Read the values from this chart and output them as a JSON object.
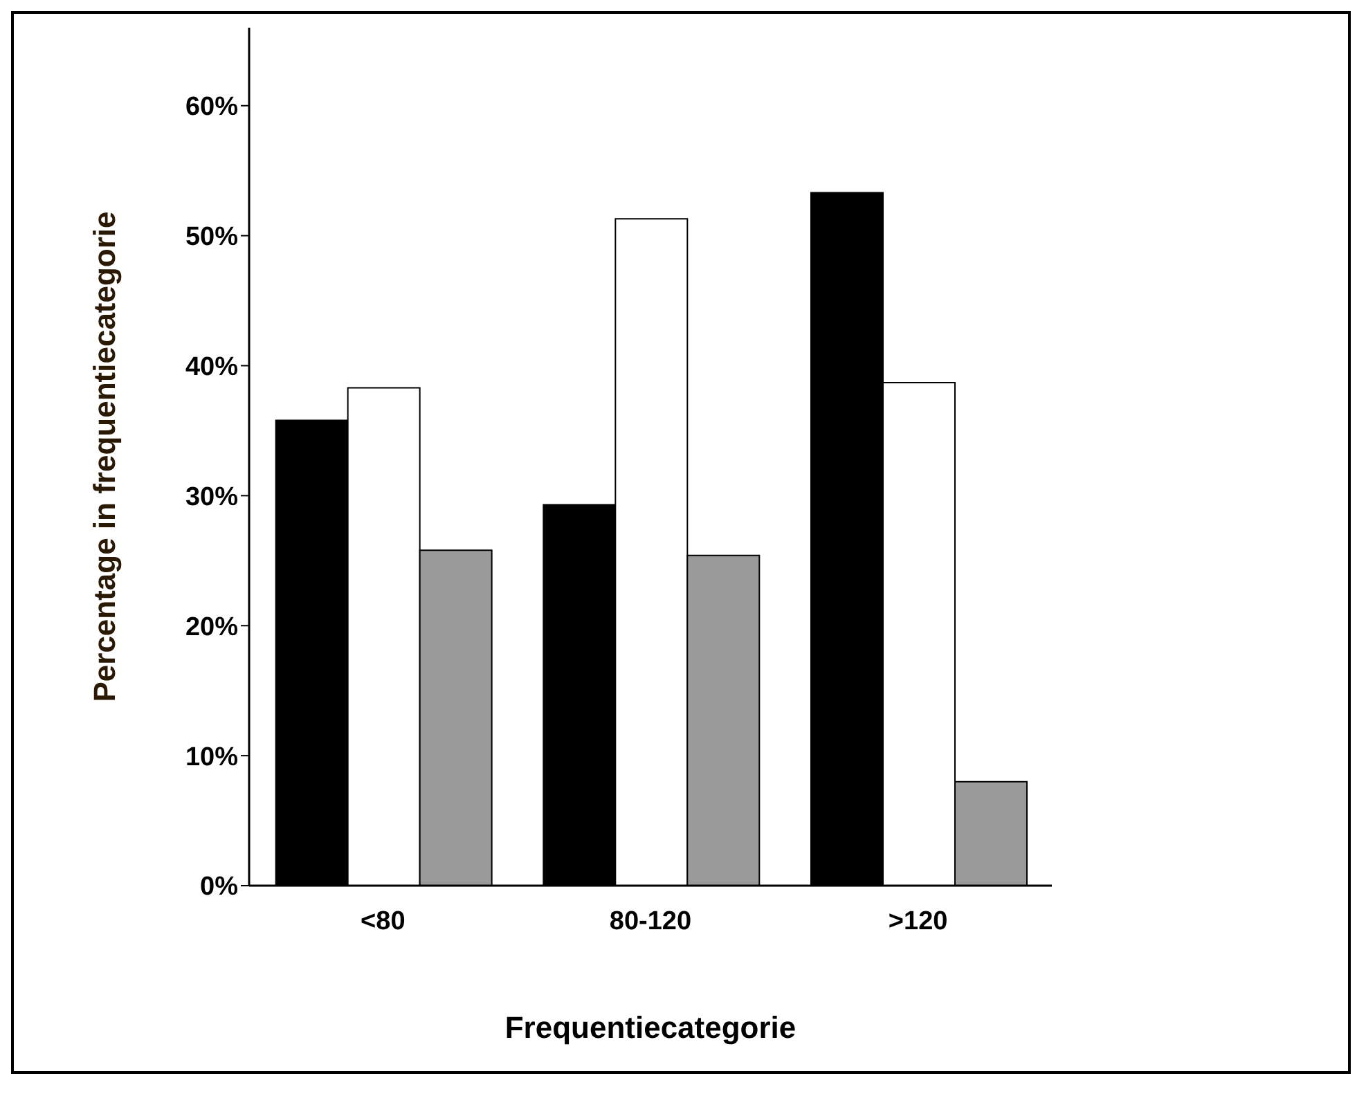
{
  "chart_data": {
    "type": "bar",
    "xlabel": "Frequentiecategorie",
    "ylabel": "Percentage in frequentiecategorie",
    "categories": [
      "<80",
      "80-120",
      ">120"
    ],
    "series": [
      {
        "color": "#000000",
        "values": [
          35.8,
          29.3,
          53.3
        ]
      },
      {
        "color": "#ffffff",
        "values": [
          38.3,
          51.3,
          38.7
        ]
      },
      {
        "color": "#9a9a9a",
        "values": [
          25.8,
          25.4,
          8.0
        ]
      }
    ],
    "ylim": [
      0,
      66
    ],
    "yticks": [
      {
        "value": 0,
        "label": "0%"
      },
      {
        "value": 10,
        "label": "10%"
      },
      {
        "value": 20,
        "label": "20%"
      },
      {
        "value": 30,
        "label": "30%"
      },
      {
        "value": 40,
        "label": "40%"
      },
      {
        "value": 50,
        "label": "50%"
      },
      {
        "value": 60,
        "label": "60%"
      }
    ],
    "grid": false
  }
}
